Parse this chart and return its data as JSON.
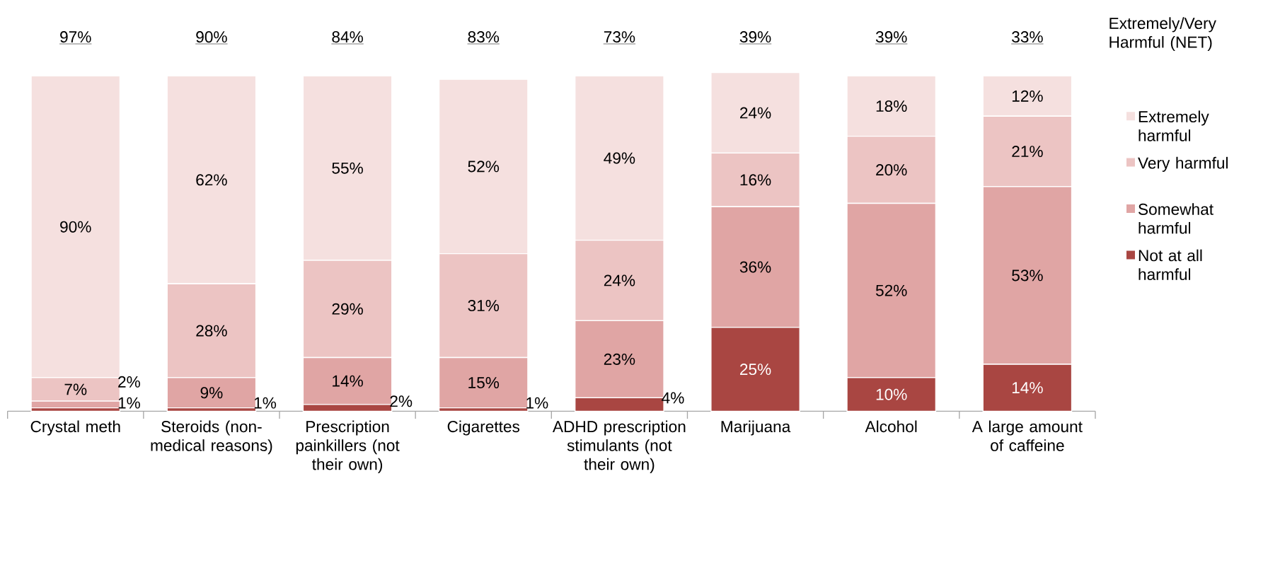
{
  "chart_data": {
    "type": "bar",
    "stacked": true,
    "legend_title": "Extremely/Very Harmful  (NET)",
    "categories": [
      "Crystal meth",
      "Steroids (non-medical reasons)",
      "Prescription painkillers (not their own)",
      "Cigarettes",
      "ADHD prescription stimulants (not their own)",
      "Marijuana",
      "Alcohol",
      "A large amount of caffeine"
    ],
    "series": [
      {
        "name": "Not at all harmful",
        "color": "#a94642",
        "values": [
          1,
          1,
          2,
          1,
          4,
          25,
          10,
          14
        ],
        "value_labels": [
          "1%",
          "1%",
          "2%",
          "1%",
          "4%",
          "25%",
          "10%",
          "14%"
        ]
      },
      {
        "name": "Somewhat harmful",
        "color": "#e0a5a4",
        "values": [
          2,
          9,
          14,
          15,
          23,
          36,
          52,
          53
        ],
        "value_labels": [
          "2%",
          "9%",
          "14%",
          "15%",
          "23%",
          "36%",
          "52%",
          "53%"
        ]
      },
      {
        "name": "Very harmful",
        "color": "#ecc4c3",
        "values": [
          7,
          28,
          29,
          31,
          24,
          16,
          20,
          21
        ],
        "value_labels": [
          "7%",
          "28%",
          "29%",
          "31%",
          "24%",
          "16%",
          "20%",
          "21%"
        ]
      },
      {
        "name": "Extremely harmful",
        "color": "#f5e0df",
        "values": [
          90,
          62,
          55,
          52,
          49,
          24,
          18,
          12
        ],
        "value_labels": [
          "90%",
          "62%",
          "55%",
          "52%",
          "49%",
          "24%",
          "18%",
          "12%"
        ]
      }
    ],
    "annotations": [
      "97%",
      "90%",
      "84%",
      "83%",
      "73%",
      "39%",
      "39%",
      "33%"
    ],
    "legend": "right"
  }
}
